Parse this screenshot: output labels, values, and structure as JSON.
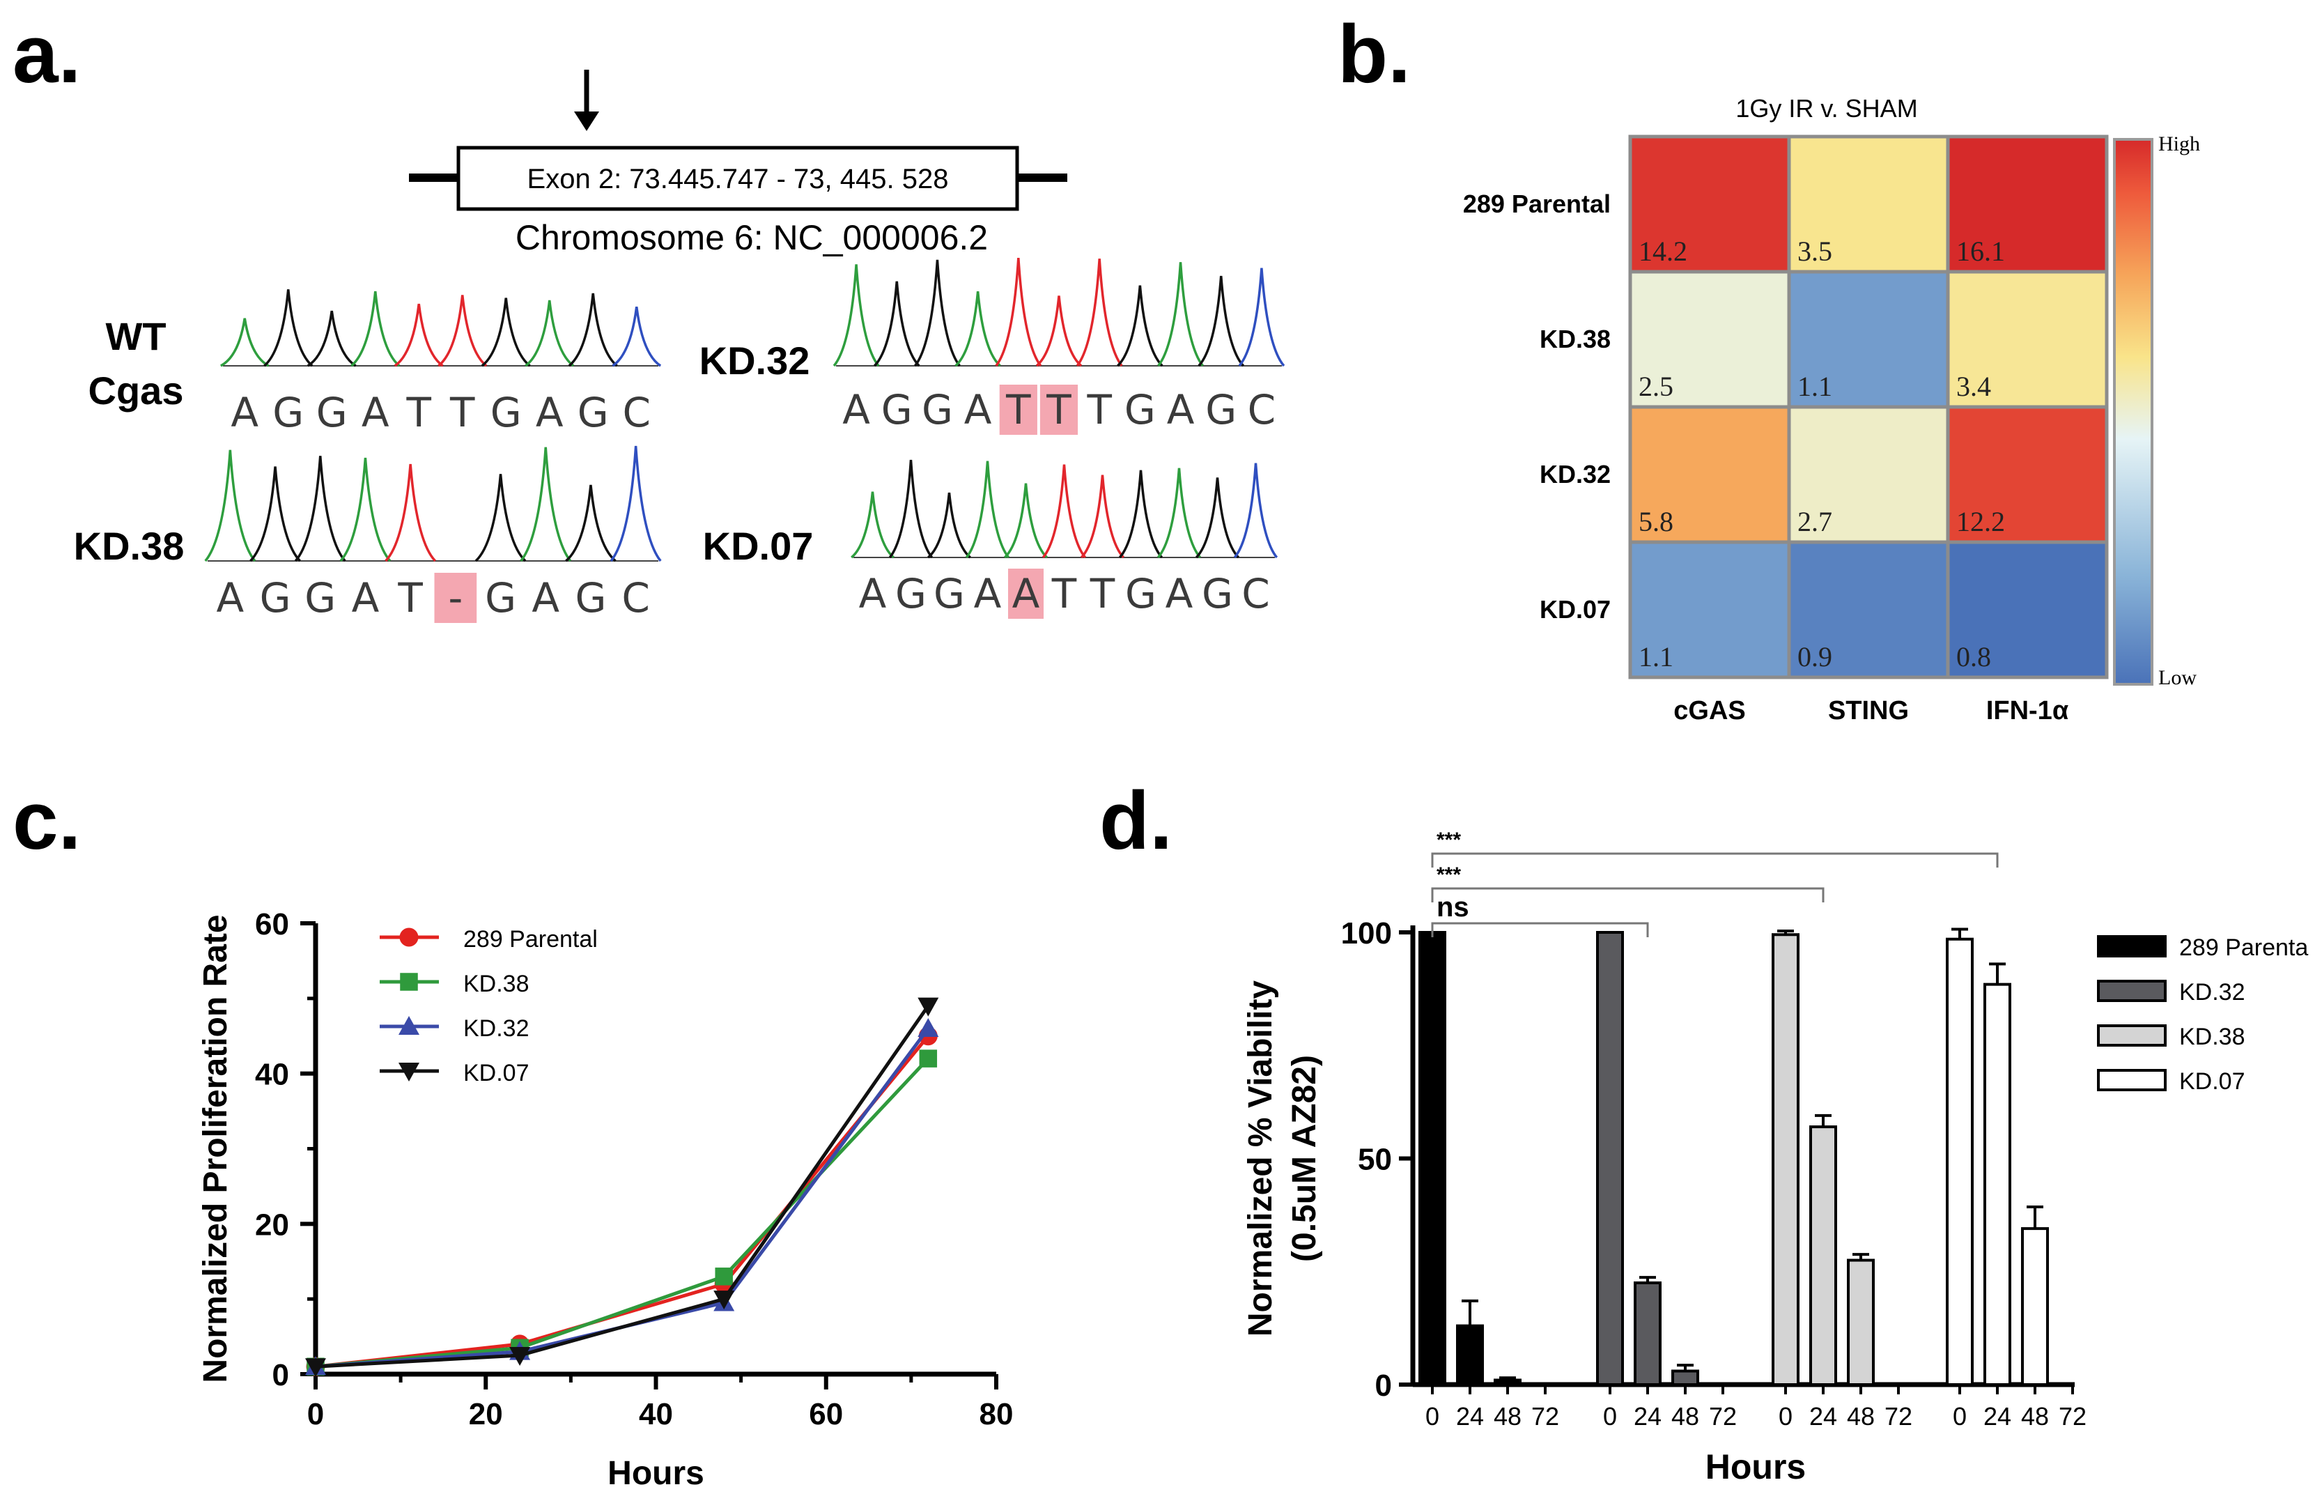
{
  "panels": {
    "a": {
      "label": "a.",
      "exon_label": "Exon 2: 73.445.747 - 73, 445. 528",
      "chromosome_label": "Chromosome 6:  NC_000006.2",
      "samples": [
        {
          "name_line1": "WT",
          "name_line2": "Cgas",
          "sequence": [
            "A",
            "G",
            "G",
            "A",
            "T",
            "T",
            "G",
            "A",
            "G",
            "C"
          ],
          "highlight": []
        },
        {
          "name_line1": "KD.32",
          "name_line2": "",
          "sequence": [
            "A",
            "G",
            "G",
            "A",
            "T",
            "T",
            "T",
            "G",
            "A",
            "G",
            "C"
          ],
          "highlight": [
            4,
            5
          ]
        },
        {
          "name_line1": "KD.38",
          "name_line2": "",
          "sequence": [
            "A",
            "G",
            "G",
            "A",
            "T",
            "-",
            "G",
            "A",
            "G",
            "C"
          ],
          "highlight": [
            5
          ]
        },
        {
          "name_line1": "KD.07",
          "name_line2": "",
          "sequence": [
            "A",
            "G",
            "G",
            "A",
            "A",
            "T",
            "T",
            "G",
            "A",
            "G",
            "C"
          ],
          "highlight": [
            4
          ]
        }
      ]
    },
    "b": {
      "label": "b.",
      "title": "1Gy IR v. SHAM",
      "rows": [
        "289 Parental",
        "KD.38",
        "KD.32",
        "KD.07"
      ],
      "columns": [
        "cGAS",
        "STING",
        "IFN-1α"
      ],
      "legend_high": "High",
      "legend_low": "Low"
    },
    "c": {
      "label": "c."
    },
    "d": {
      "label": "d."
    }
  },
  "chart_data": [
    {
      "type": "heatmap",
      "title": "1Gy IR v. SHAM",
      "rows": [
        "289 Parental",
        "KD.38",
        "KD.32",
        "KD.07"
      ],
      "columns": [
        "cGAS",
        "STING",
        "IFN-1α"
      ],
      "values": [
        [
          14.2,
          3.5,
          16.1
        ],
        [
          2.5,
          1.1,
          3.4
        ],
        [
          5.8,
          2.7,
          12.2
        ],
        [
          1.1,
          0.9,
          0.8
        ]
      ],
      "value_labels": [
        [
          "14.2",
          "3.5",
          "16.1"
        ],
        [
          "2.5",
          "1.1",
          "3.4"
        ],
        [
          "5.8",
          "2.7",
          "12.2"
        ],
        [
          "1.1",
          "0.9",
          "0.8"
        ]
      ],
      "colorscale": [
        "#4a72b8",
        "#8ab4d8",
        "#e6f4f6",
        "#f9e48a",
        "#f6a55a",
        "#ee5b3c",
        "#d62a2a"
      ],
      "vmin": 0.8,
      "vmax": 16.1,
      "legend": {
        "high": "High",
        "low": "Low"
      }
    },
    {
      "type": "line",
      "xlabel": "Hours",
      "ylabel": "Normalized Proliferation Rate",
      "xlim": [
        0,
        80
      ],
      "ylim": [
        0,
        60
      ],
      "xticks": [
        0,
        20,
        40,
        60,
        80
      ],
      "yticks": [
        0,
        20,
        40,
        60
      ],
      "series": [
        {
          "name": "289 Parental",
          "color": "#e3231f",
          "marker": "circle",
          "x": [
            0,
            24,
            48,
            72
          ],
          "y": [
            1,
            4,
            12,
            45
          ]
        },
        {
          "name": "KD.38",
          "color": "#2f9a3c",
          "marker": "square",
          "x": [
            0,
            24,
            48,
            72
          ],
          "y": [
            1,
            3.5,
            13,
            42
          ]
        },
        {
          "name": "KD.32",
          "color": "#3a4aa8",
          "marker": "triangle-up",
          "x": [
            0,
            24,
            48,
            72
          ],
          "y": [
            1,
            3,
            9.5,
            46
          ]
        },
        {
          "name": "KD.07",
          "color": "#111111",
          "marker": "triangle-down",
          "x": [
            0,
            24,
            48,
            72
          ],
          "y": [
            1,
            2.5,
            10,
            49
          ]
        }
      ]
    },
    {
      "type": "bar",
      "xlabel": "Hours",
      "ylabel_line1": "Normalized % Viability",
      "ylabel_line2": "(0.5uM AZ82)",
      "ylim": [
        0,
        100
      ],
      "yticks": [
        0,
        50,
        100
      ],
      "categories": [
        "0",
        "24",
        "48",
        "72"
      ],
      "series": [
        {
          "name": "289 Parenta",
          "fill": "#000000",
          "values": [
            100,
            13,
            1,
            0
          ],
          "errors": [
            0,
            5.5,
            0.5,
            0
          ]
        },
        {
          "name": "KD.32",
          "fill": "#5a5a5e",
          "values": [
            100,
            22.5,
            3,
            0
          ],
          "errors": [
            0,
            1.2,
            1.3,
            0
          ]
        },
        {
          "name": "KD.38",
          "fill": "#d4d4d4",
          "values": [
            99.5,
            57,
            27.5,
            0
          ],
          "errors": [
            0.8,
            2.5,
            1.3,
            0
          ]
        },
        {
          "name": "KD.07",
          "fill": "#ffffff",
          "values": [
            98.5,
            88.5,
            34.5,
            0
          ],
          "errors": [
            2.2,
            4.5,
            4.8,
            0
          ]
        }
      ],
      "significance": [
        {
          "label": "***",
          "from_group": 0,
          "to_group": 3
        },
        {
          "label": "***",
          "from_group": 0,
          "to_group": 2
        },
        {
          "label": "ns",
          "from_group": 0,
          "to_group": 1
        }
      ]
    }
  ]
}
